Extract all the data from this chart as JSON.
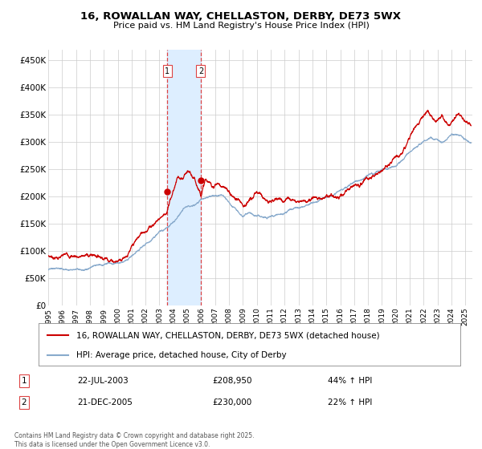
{
  "title": "16, ROWALLAN WAY, CHELLASTON, DERBY, DE73 5WX",
  "subtitle": "Price paid vs. HM Land Registry's House Price Index (HPI)",
  "background_color": "#ffffff",
  "plot_bg_color": "#ffffff",
  "grid_color": "#cccccc",
  "red_line_color": "#cc0000",
  "blue_line_color": "#88aacc",
  "highlight_fill": "#ddeeff",
  "dashed_line_color": "#dd4444",
  "sale1_date_num": 2003.55,
  "sale1_price": 208950,
  "sale1_hpi_pct": "44% ↑ HPI",
  "sale1_date_str": "22-JUL-2003",
  "sale2_date_num": 2005.97,
  "sale2_price": 230000,
  "sale2_hpi_pct": "22% ↑ HPI",
  "sale2_date_str": "21-DEC-2005",
  "legend_red": "16, ROWALLAN WAY, CHELLASTON, DERBY, DE73 5WX (detached house)",
  "legend_blue": "HPI: Average price, detached house, City of Derby",
  "footnote": "Contains HM Land Registry data © Crown copyright and database right 2025.\nThis data is licensed under the Open Government Licence v3.0.",
  "ylim": [
    0,
    470000
  ],
  "xlim_start": 1995.0,
  "xlim_end": 2025.5,
  "yticks": [
    0,
    50000,
    100000,
    150000,
    200000,
    250000,
    300000,
    350000,
    400000,
    450000
  ],
  "ytick_labels": [
    "£0",
    "£50K",
    "£100K",
    "£150K",
    "£200K",
    "£250K",
    "£300K",
    "£350K",
    "£400K",
    "£450K"
  ],
  "xticks": [
    1995,
    1996,
    1997,
    1998,
    1999,
    2000,
    2001,
    2002,
    2003,
    2004,
    2005,
    2006,
    2007,
    2008,
    2009,
    2010,
    2011,
    2012,
    2013,
    2014,
    2015,
    2016,
    2017,
    2018,
    2019,
    2020,
    2021,
    2022,
    2023,
    2024,
    2025
  ]
}
